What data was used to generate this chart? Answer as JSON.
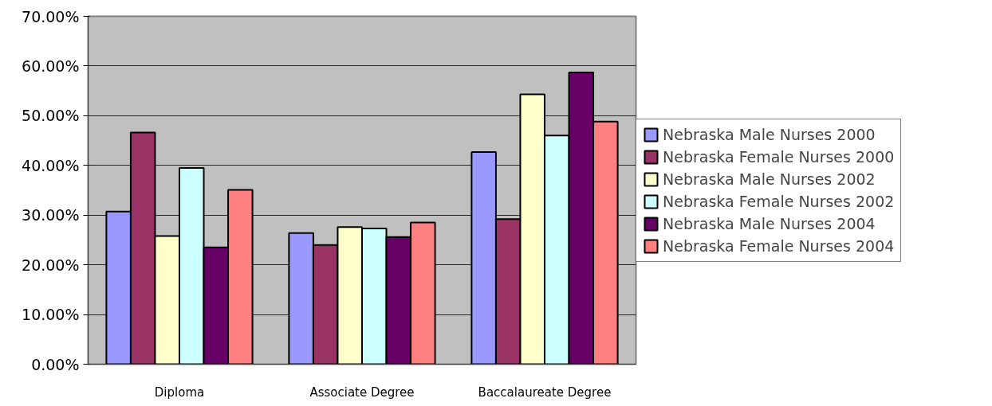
{
  "chart_data": {
    "type": "bar",
    "categories": [
      "Diploma",
      "Associate Degree",
      "Baccalaureate Degree"
    ],
    "series": [
      {
        "name": "Nebraska Male Nurses 2000",
        "color": "#9999ff",
        "values": [
          30.7,
          26.4,
          42.7
        ]
      },
      {
        "name": "Nebraska Female Nurses 2000",
        "color": "#993366",
        "values": [
          46.6,
          24.0,
          29.2
        ]
      },
      {
        "name": "Nebraska Male Nurses 2002",
        "color": "#ffffcc",
        "values": [
          25.8,
          27.6,
          54.3
        ]
      },
      {
        "name": "Nebraska Female Nurses 2002",
        "color": "#ccffff",
        "values": [
          39.5,
          27.3,
          46.0
        ]
      },
      {
        "name": "Nebraska Male Nurses 2004",
        "color": "#660066",
        "values": [
          23.5,
          25.6,
          58.7
        ]
      },
      {
        "name": "Nebraska Female Nurses 2004",
        "color": "#ff8080",
        "values": [
          35.1,
          28.5,
          48.8
        ]
      }
    ],
    "ylim": [
      0,
      70
    ],
    "yticks": [
      {
        "value": 0,
        "label": "0.00%"
      },
      {
        "value": 10,
        "label": "10.00%"
      },
      {
        "value": 20,
        "label": "20.00%"
      },
      {
        "value": 30,
        "label": "30.00%"
      },
      {
        "value": 40,
        "label": "40.00%"
      },
      {
        "value": 50,
        "label": "50.00%"
      },
      {
        "value": 60,
        "label": "60.00%"
      },
      {
        "value": 70,
        "label": "70.00%"
      }
    ],
    "grid": "y",
    "legend": "right"
  }
}
